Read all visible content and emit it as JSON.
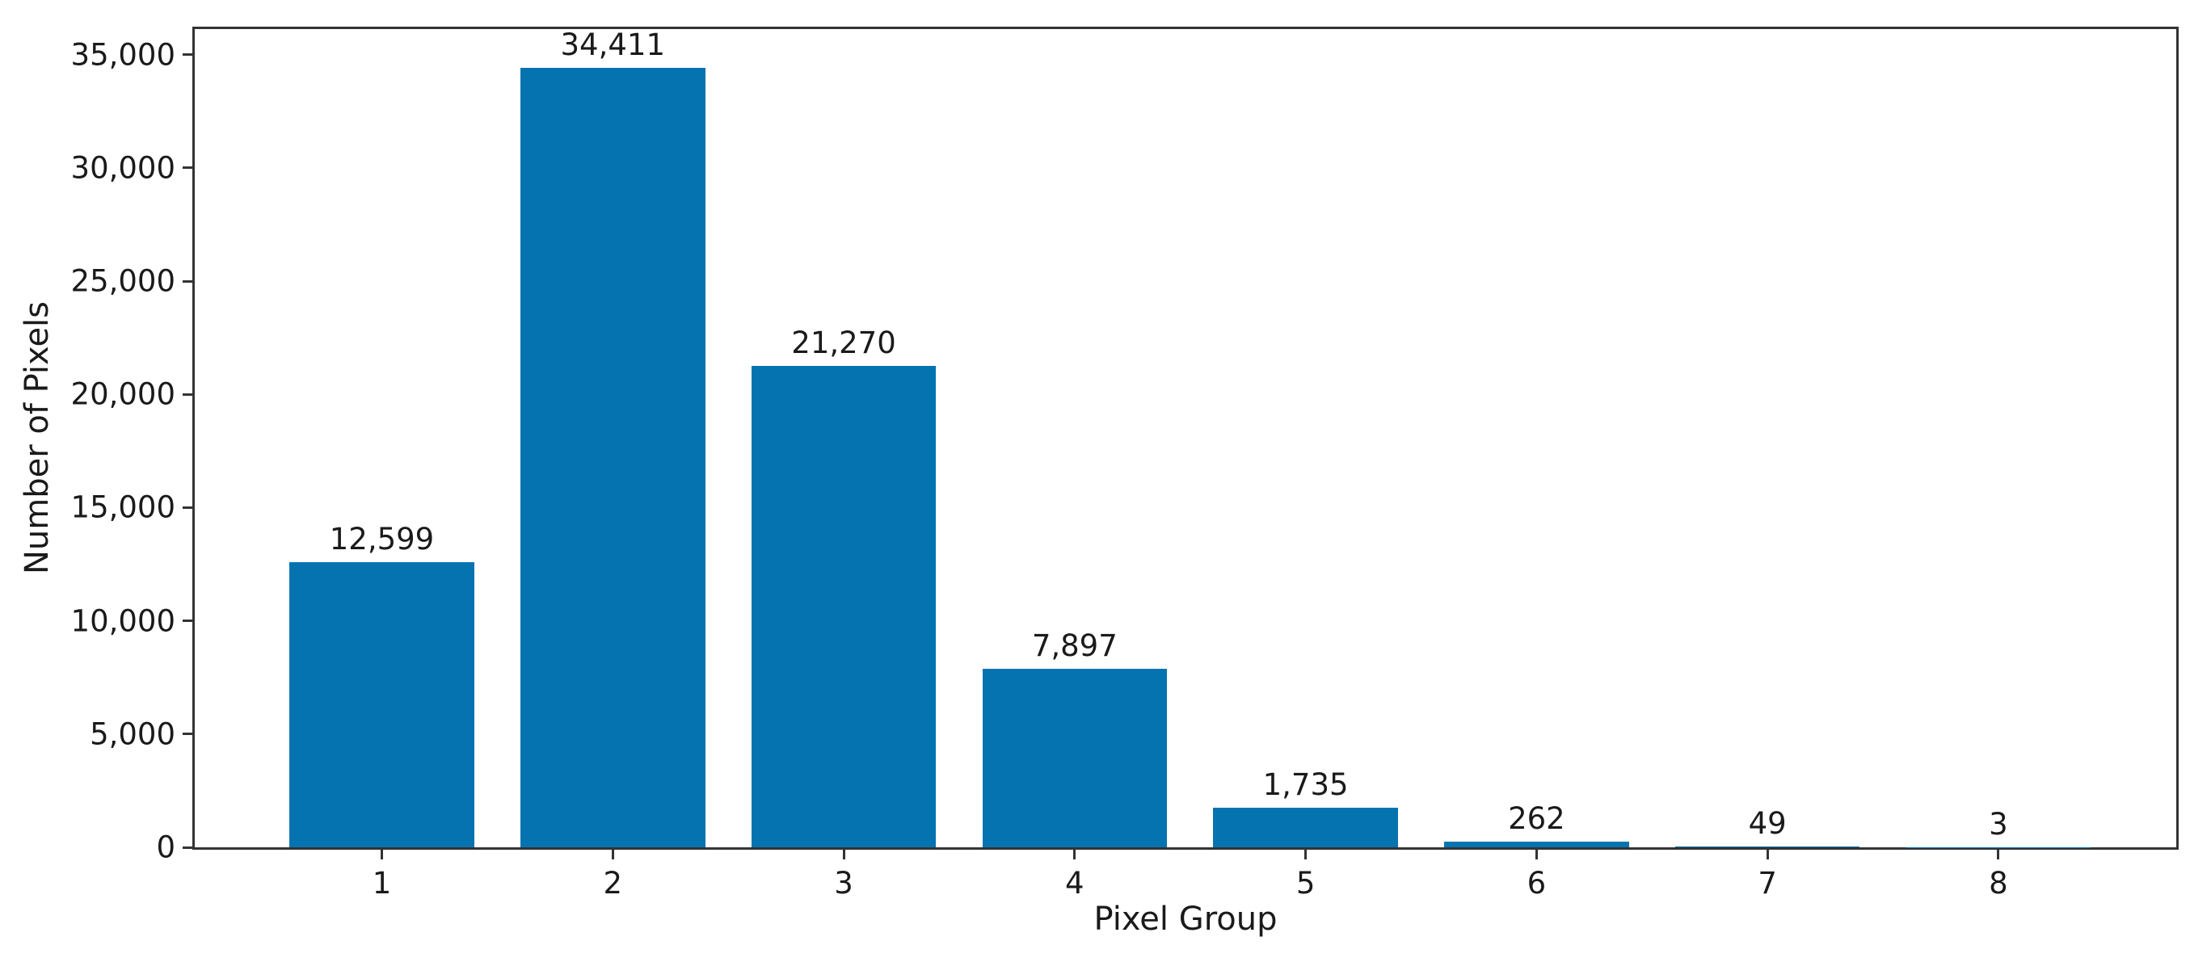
{
  "chart": {
    "background_color": "#ffffff",
    "bar_color": "#0673b1",
    "spine_color": "#333333",
    "text_color": "#1a1a1a"
  },
  "chart_data": {
    "type": "bar",
    "title": "",
    "xlabel": "Pixel Group",
    "ylabel": "Number of Pixels",
    "categories": [
      "1",
      "2",
      "3",
      "4",
      "5",
      "6",
      "7",
      "8"
    ],
    "values": [
      12599,
      34411,
      21270,
      7897,
      1735,
      262,
      49,
      3
    ],
    "value_labels": [
      "12,599",
      "34,411",
      "21,270",
      "7,897",
      "1,735",
      "262",
      "49",
      "3"
    ],
    "yticks": [
      0,
      5000,
      10000,
      15000,
      20000,
      25000,
      30000,
      35000
    ],
    "ytick_labels": [
      "0",
      "5,000",
      "10,000",
      "15,000",
      "20,000",
      "25,000",
      "30,000",
      "35,000"
    ],
    "ylim": [
      0,
      36132
    ],
    "xlim": [
      0.19,
      8.77
    ],
    "bar_width": 0.8,
    "grid": false,
    "legend": null
  }
}
